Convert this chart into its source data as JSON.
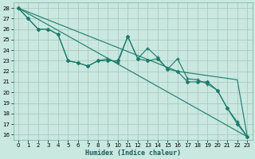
{
  "bg_color": "#c8e8e0",
  "grid_color": "#b0c8c0",
  "line_color": "#1a7a6a",
  "xlabel": "Humidex (Indice chaleur)",
  "xlim": [
    -0.5,
    23.5
  ],
  "ylim": [
    15.5,
    28.5
  ],
  "xticks": [
    0,
    1,
    2,
    3,
    4,
    5,
    6,
    7,
    8,
    9,
    10,
    11,
    12,
    13,
    14,
    15,
    16,
    17,
    18,
    19,
    20,
    21,
    22,
    23
  ],
  "yticks": [
    16,
    17,
    18,
    19,
    20,
    21,
    22,
    23,
    24,
    25,
    26,
    27,
    28
  ],
  "lines": [
    {
      "x": [
        0,
        1,
        2,
        3,
        4,
        5,
        6,
        7,
        8,
        9,
        10,
        11,
        12,
        13,
        14,
        15,
        16,
        17,
        18,
        19,
        20,
        21,
        22,
        23
      ],
      "y": [
        28,
        27,
        26,
        26,
        25.5,
        23,
        22.8,
        22.5,
        23,
        23,
        23,
        25.3,
        23.2,
        23,
        23.2,
        22.2,
        22,
        21,
        21,
        21,
        20.2,
        18.5,
        17,
        15.8
      ],
      "marker": "D",
      "markersize": 2
    },
    {
      "x": [
        0,
        23
      ],
      "y": [
        28,
        15.8
      ],
      "marker": null,
      "markersize": 0
    },
    {
      "x": [
        0,
        16,
        22,
        23
      ],
      "y": [
        28,
        22,
        21.2,
        15.8
      ],
      "marker": null,
      "markersize": 0
    },
    {
      "x": [
        0,
        1,
        2,
        3,
        4,
        5,
        6,
        7,
        8,
        9,
        10,
        11,
        12,
        13,
        14,
        15,
        16,
        17,
        18,
        19,
        20,
        21,
        22,
        23
      ],
      "y": [
        28,
        27,
        26,
        26,
        25.5,
        23,
        22.8,
        22.5,
        23,
        23.2,
        22.8,
        25.3,
        23.2,
        24.2,
        23.3,
        22.2,
        23.2,
        21.3,
        21.2,
        20.8,
        20.2,
        18.5,
        17.2,
        15.8
      ],
      "marker": "+",
      "markersize": 3
    }
  ]
}
